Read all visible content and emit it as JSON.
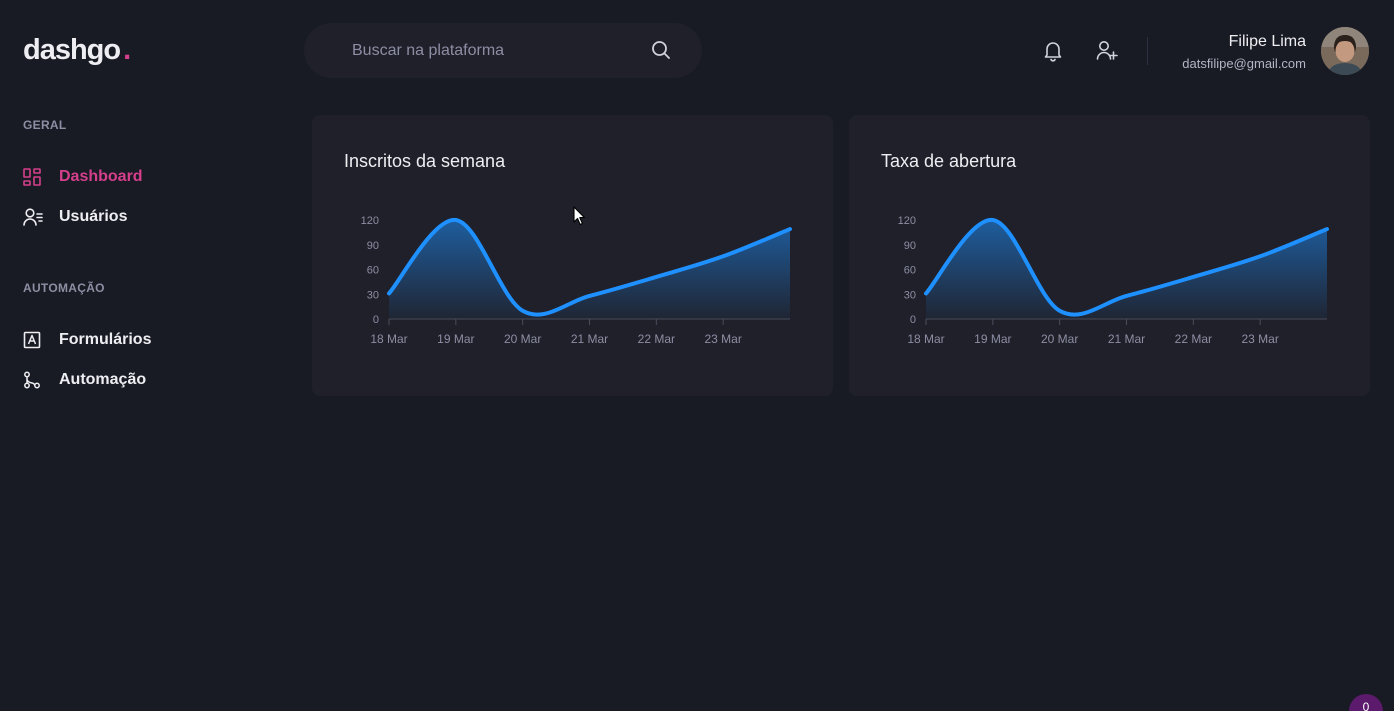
{
  "header": {
    "logo": "dashgo",
    "logo_dot": ".",
    "search_placeholder": "Buscar na plataforma",
    "user": {
      "name": "Filipe Lima",
      "email": "datsfilipe@gmail.com"
    }
  },
  "sidebar": {
    "sections": [
      {
        "title": "GERAL",
        "items": [
          {
            "label": "Dashboard",
            "icon": "dashboard-icon",
            "active": true
          },
          {
            "label": "Usuários",
            "icon": "users-icon",
            "active": false
          }
        ]
      },
      {
        "title": "AUTOMAÇÃO",
        "items": [
          {
            "label": "Formulários",
            "icon": "form-icon",
            "active": false
          },
          {
            "label": "Automação",
            "icon": "automation-icon",
            "active": false
          }
        ]
      }
    ]
  },
  "colors": {
    "background": "#181b23",
    "card": "#1f2029",
    "accent": "#d53f8c",
    "series": "#1e90ff"
  },
  "corner_badge": "0",
  "chart_data": [
    {
      "type": "area",
      "title": "Inscritos da semana",
      "categories": [
        "18 Mar",
        "19 Mar",
        "20 Mar",
        "21 Mar",
        "22 Mar",
        "23 Mar"
      ],
      "x": [
        "2021-03-18",
        "2021-03-19",
        "2021-03-20",
        "2021-03-21",
        "2021-03-22",
        "2021-03-23",
        "2021-03-24"
      ],
      "series": [
        {
          "values": [
            31,
            120,
            10,
            28,
            51,
            76,
            109
          ]
        }
      ],
      "yticks": [
        0,
        30,
        60,
        90,
        120
      ],
      "ylim": [
        0,
        120
      ],
      "grid": false,
      "legend": "none"
    },
    {
      "type": "area",
      "title": "Taxa de abertura",
      "categories": [
        "18 Mar",
        "19 Mar",
        "20 Mar",
        "21 Mar",
        "22 Mar",
        "23 Mar"
      ],
      "x": [
        "2021-03-18",
        "2021-03-19",
        "2021-03-20",
        "2021-03-21",
        "2021-03-22",
        "2021-03-23",
        "2021-03-24"
      ],
      "series": [
        {
          "values": [
            31,
            120,
            10,
            28,
            51,
            76,
            109
          ]
        }
      ],
      "yticks": [
        0,
        30,
        60,
        90,
        120
      ],
      "ylim": [
        0,
        120
      ],
      "grid": false,
      "legend": "none"
    }
  ]
}
